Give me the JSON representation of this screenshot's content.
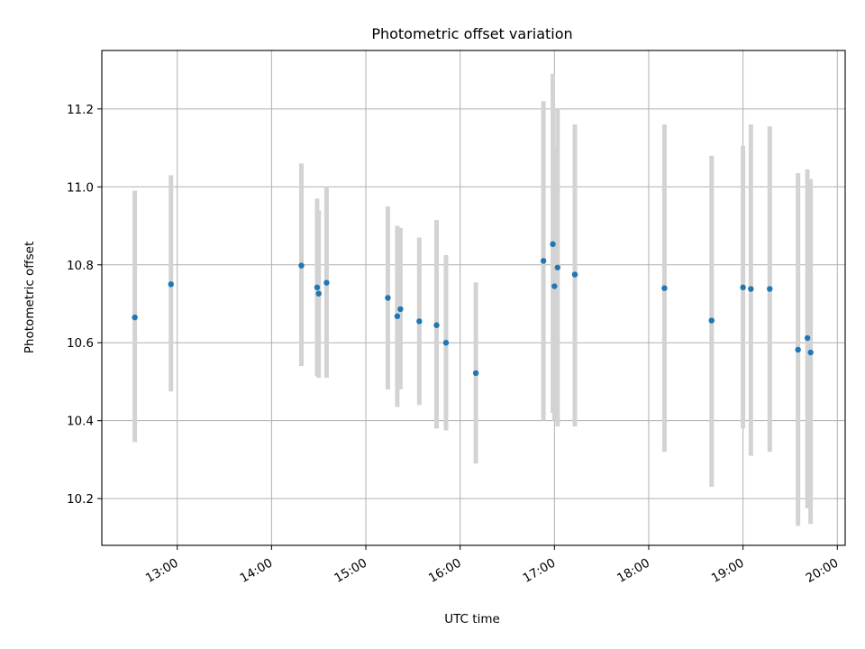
{
  "chart_data": {
    "type": "scatter",
    "title": "Photometric offset variation",
    "xlabel": "UTC time",
    "ylabel": "Photometric offset",
    "x_tick_labels": [
      "13:00",
      "14:00",
      "15:00",
      "16:00",
      "17:00",
      "18:00",
      "19:00",
      "20:00"
    ],
    "y_tick_labels": [
      "10.2",
      "10.4",
      "10.6",
      "10.8",
      "11.0",
      "11.2"
    ],
    "grid": true,
    "xlim": [
      "12:12",
      "20:05"
    ],
    "ylim": [
      10.08,
      11.35
    ],
    "colors": {
      "point": "#1f77b4",
      "errorbar": "#d3d3d3",
      "grid": "#b0b0b0"
    },
    "points": [
      {
        "x": "12:33",
        "y": 10.665,
        "ylow": 10.345,
        "yhigh": 10.99
      },
      {
        "x": "12:56",
        "y": 10.75,
        "ylow": 10.475,
        "yhigh": 11.03
      },
      {
        "x": "14:19",
        "y": 10.798,
        "ylow": 10.54,
        "yhigh": 11.06
      },
      {
        "x": "14:29",
        "y": 10.742,
        "ylow": 10.515,
        "yhigh": 10.97
      },
      {
        "x": "14:30",
        "y": 10.726,
        "ylow": 10.51,
        "yhigh": 10.94
      },
      {
        "x": "14:35",
        "y": 10.754,
        "ylow": 10.51,
        "yhigh": 11.0
      },
      {
        "x": "15:14",
        "y": 10.715,
        "ylow": 10.48,
        "yhigh": 10.95
      },
      {
        "x": "15:20",
        "y": 10.668,
        "ylow": 10.435,
        "yhigh": 10.9
      },
      {
        "x": "15:22",
        "y": 10.686,
        "ylow": 10.48,
        "yhigh": 10.895
      },
      {
        "x": "15:34",
        "y": 10.655,
        "ylow": 10.44,
        "yhigh": 10.87
      },
      {
        "x": "15:45",
        "y": 10.645,
        "ylow": 10.38,
        "yhigh": 10.915
      },
      {
        "x": "15:51",
        "y": 10.6,
        "ylow": 10.375,
        "yhigh": 10.825
      },
      {
        "x": "16:10",
        "y": 10.522,
        "ylow": 10.29,
        "yhigh": 10.755
      },
      {
        "x": "16:53",
        "y": 10.81,
        "ylow": 10.4,
        "yhigh": 11.22
      },
      {
        "x": "16:59",
        "y": 10.853,
        "ylow": 10.42,
        "yhigh": 11.29
      },
      {
        "x": "17:00",
        "y": 10.745,
        "ylow": 10.4,
        "yhigh": 11.1
      },
      {
        "x": "17:02",
        "y": 10.793,
        "ylow": 10.385,
        "yhigh": 11.2
      },
      {
        "x": "17:13",
        "y": 10.775,
        "ylow": 10.385,
        "yhigh": 11.16
      },
      {
        "x": "18:10",
        "y": 10.74,
        "ylow": 10.32,
        "yhigh": 11.16
      },
      {
        "x": "18:40",
        "y": 10.657,
        "ylow": 10.23,
        "yhigh": 11.08
      },
      {
        "x": "19:00",
        "y": 10.742,
        "ylow": 10.38,
        "yhigh": 11.105
      },
      {
        "x": "19:05",
        "y": 10.738,
        "ylow": 10.31,
        "yhigh": 11.16
      },
      {
        "x": "19:17",
        "y": 10.738,
        "ylow": 10.32,
        "yhigh": 11.155
      },
      {
        "x": "19:35",
        "y": 10.582,
        "ylow": 10.13,
        "yhigh": 11.035
      },
      {
        "x": "19:41",
        "y": 10.612,
        "ylow": 10.175,
        "yhigh": 11.045
      },
      {
        "x": "19:43",
        "y": 10.575,
        "ylow": 10.135,
        "yhigh": 11.02
      }
    ]
  }
}
